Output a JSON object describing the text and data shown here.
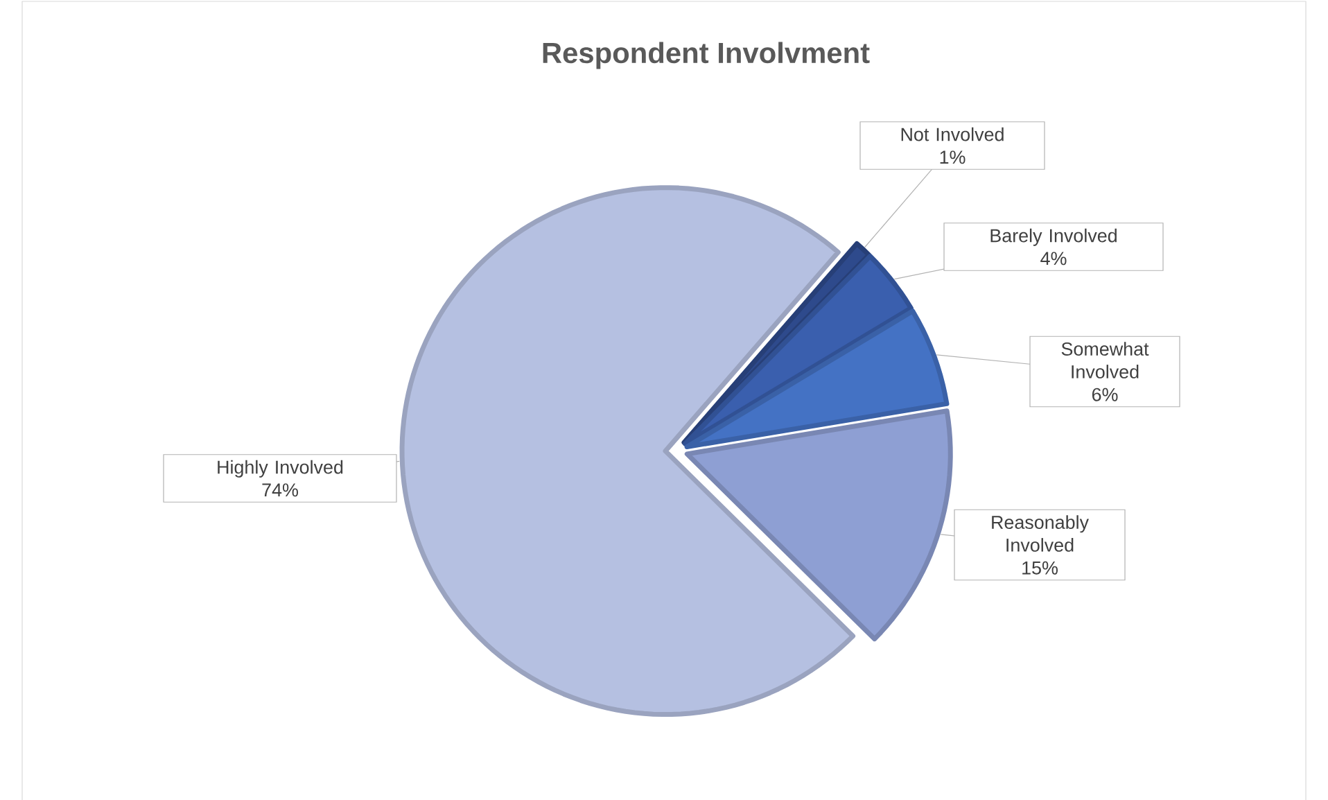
{
  "chart_data": {
    "type": "pie",
    "title": "Respondent Involvment",
    "categories": [
      "Not Involved",
      "Barely Involved",
      "Somewhat Involved",
      "Reasonably Involved",
      "Highly Involved"
    ],
    "values": [
      1,
      4,
      6,
      15,
      74
    ],
    "value_labels": [
      "1%",
      "4%",
      "6%",
      "15%",
      "74%"
    ],
    "colors": [
      "#2e4a8c",
      "#3a5fae",
      "#4472c4",
      "#8e9fd3",
      "#b5c0e1"
    ],
    "data_labels": true
  }
}
